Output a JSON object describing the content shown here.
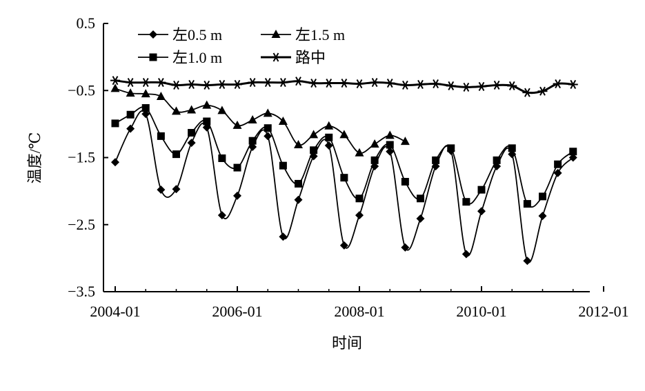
{
  "chart_data": {
    "type": "line",
    "xlabel": "时间",
    "ylabel": "温度/℃",
    "xlim": [
      "2004-01",
      "2012-01"
    ],
    "ylim": [
      -3.5,
      0.5
    ],
    "x_ticks": [
      "2004-01",
      "2006-01",
      "2008-01",
      "2010-01",
      "2012-01"
    ],
    "y_ticks": [
      "0.5",
      "-0.5",
      "-1.5",
      "-2.5",
      "-3.5"
    ],
    "grid": false,
    "legend_position": "top-left",
    "series": [
      {
        "name": "左0.5 m",
        "marker": "diamond",
        "points": [
          [
            "2004-01",
            -1.57
          ],
          [
            "2004-04",
            -1.07
          ],
          [
            "2004-07",
            -0.85
          ],
          [
            "2004-10",
            -1.98
          ],
          [
            "2005-01",
            -1.97
          ],
          [
            "2005-04",
            -1.28
          ],
          [
            "2005-07",
            -1.05
          ],
          [
            "2005-10",
            -2.36
          ],
          [
            "2006-01",
            -2.07
          ],
          [
            "2006-04",
            -1.34
          ],
          [
            "2006-07",
            -1.18
          ],
          [
            "2006-10",
            -2.68
          ],
          [
            "2007-01",
            -2.13
          ],
          [
            "2007-04",
            -1.48
          ],
          [
            "2007-07",
            -1.32
          ],
          [
            "2007-10",
            -2.81
          ],
          [
            "2008-01",
            -2.36
          ],
          [
            "2008-04",
            -1.63
          ],
          [
            "2008-07",
            -1.41
          ],
          [
            "2008-10",
            -2.84
          ],
          [
            "2009-01",
            -2.41
          ],
          [
            "2009-04",
            -1.63
          ],
          [
            "2009-07",
            -1.4
          ],
          [
            "2009-10",
            -2.94
          ],
          [
            "2010-01",
            -2.3
          ],
          [
            "2010-04",
            -1.63
          ],
          [
            "2010-07",
            -1.45
          ],
          [
            "2010-10",
            -3.04
          ],
          [
            "2011-01",
            -2.37
          ],
          [
            "2011-04",
            -1.73
          ],
          [
            "2011-07",
            -1.5
          ]
        ]
      },
      {
        "name": "左1.0 m",
        "marker": "square",
        "points": [
          [
            "2004-01",
            -0.99
          ],
          [
            "2004-04",
            -0.86
          ],
          [
            "2004-07",
            -0.76
          ],
          [
            "2004-10",
            -1.18
          ],
          [
            "2005-01",
            -1.45
          ],
          [
            "2005-04",
            -1.13
          ],
          [
            "2005-07",
            -0.96
          ],
          [
            "2005-10",
            -1.51
          ],
          [
            "2006-01",
            -1.65
          ],
          [
            "2006-04",
            -1.25
          ],
          [
            "2006-07",
            -1.06
          ],
          [
            "2006-10",
            -1.62
          ],
          [
            "2007-01",
            -1.89
          ],
          [
            "2007-04",
            -1.39
          ],
          [
            "2007-07",
            -1.2
          ],
          [
            "2007-10",
            -1.8
          ],
          [
            "2008-01",
            -2.11
          ],
          [
            "2008-04",
            -1.54
          ],
          [
            "2008-07",
            -1.31
          ],
          [
            "2008-10",
            -1.86
          ],
          [
            "2009-01",
            -2.11
          ],
          [
            "2009-04",
            -1.54
          ],
          [
            "2009-07",
            -1.36
          ],
          [
            "2009-10",
            -2.16
          ],
          [
            "2010-01",
            -1.98
          ],
          [
            "2010-04",
            -1.54
          ],
          [
            "2010-07",
            -1.36
          ],
          [
            "2010-10",
            -2.19
          ],
          [
            "2011-01",
            -2.08
          ],
          [
            "2011-04",
            -1.6
          ],
          [
            "2011-07",
            -1.41
          ]
        ]
      },
      {
        "name": "左1.5 m",
        "marker": "triangle",
        "points": [
          [
            "2004-01",
            -0.47
          ],
          [
            "2004-04",
            -0.54
          ],
          [
            "2004-07",
            -0.55
          ],
          [
            "2004-10",
            -0.59
          ],
          [
            "2005-01",
            -0.81
          ],
          [
            "2005-04",
            -0.79
          ],
          [
            "2005-07",
            -0.72
          ],
          [
            "2005-10",
            -0.8
          ],
          [
            "2006-01",
            -1.02
          ],
          [
            "2006-04",
            -0.94
          ],
          [
            "2006-07",
            -0.84
          ],
          [
            "2006-10",
            -0.96
          ],
          [
            "2007-01",
            -1.31
          ],
          [
            "2007-04",
            -1.16
          ],
          [
            "2007-07",
            -1.03
          ],
          [
            "2007-10",
            -1.16
          ],
          [
            "2008-01",
            -1.43
          ],
          [
            "2008-04",
            -1.3
          ],
          [
            "2008-07",
            -1.17
          ],
          [
            "2008-10",
            -1.26
          ]
        ]
      },
      {
        "name": "路中",
        "marker": "asterisk",
        "points": [
          [
            "2004-01",
            -0.35
          ],
          [
            "2004-04",
            -0.38
          ],
          [
            "2004-07",
            -0.38
          ],
          [
            "2004-10",
            -0.38
          ],
          [
            "2005-01",
            -0.42
          ],
          [
            "2005-04",
            -0.41
          ],
          [
            "2005-07",
            -0.42
          ],
          [
            "2005-10",
            -0.41
          ],
          [
            "2006-01",
            -0.41
          ],
          [
            "2006-04",
            -0.38
          ],
          [
            "2006-07",
            -0.38
          ],
          [
            "2006-10",
            -0.38
          ],
          [
            "2007-01",
            -0.36
          ],
          [
            "2007-04",
            -0.39
          ],
          [
            "2007-07",
            -0.39
          ],
          [
            "2007-10",
            -0.39
          ],
          [
            "2008-01",
            -0.4
          ],
          [
            "2008-04",
            -0.38
          ],
          [
            "2008-07",
            -0.39
          ],
          [
            "2008-10",
            -0.42
          ],
          [
            "2009-01",
            -0.41
          ],
          [
            "2009-04",
            -0.4
          ],
          [
            "2009-07",
            -0.43
          ],
          [
            "2009-10",
            -0.45
          ],
          [
            "2010-01",
            -0.44
          ],
          [
            "2010-04",
            -0.42
          ],
          [
            "2010-07",
            -0.43
          ],
          [
            "2010-10",
            -0.53
          ],
          [
            "2011-01",
            -0.51
          ],
          [
            "2011-04",
            -0.4
          ],
          [
            "2011-07",
            -0.41
          ]
        ]
      }
    ]
  }
}
